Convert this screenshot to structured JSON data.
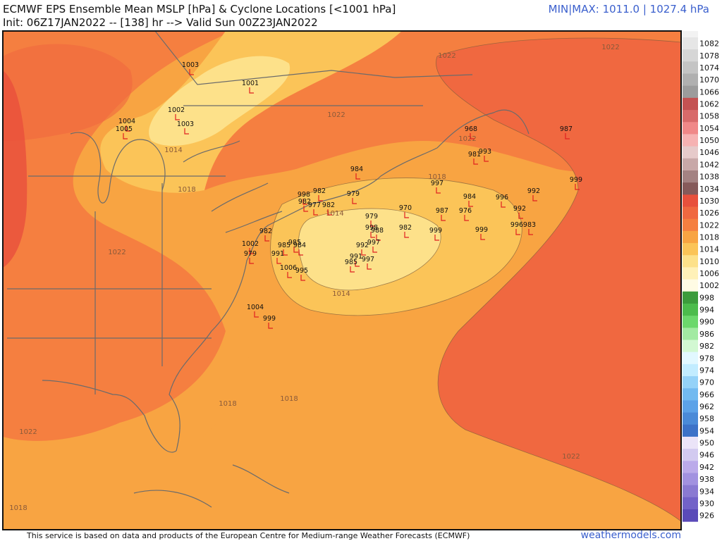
{
  "header": {
    "title": "ECMWF EPS Ensemble Mean MSLP [hPa] & Cyclone Locations [<1001 hPa]",
    "init": "Init: 06Z17JAN2022 -- [138] hr --> Valid Sun 00Z23JAN2022",
    "minmax": "MIN|MAX: 1011.0 | 1027.4 hPa"
  },
  "colorbar": {
    "levels": [
      1082,
      1078,
      1074,
      1070,
      1066,
      1062,
      1058,
      1054,
      1050,
      1046,
      1042,
      1038,
      1034,
      1030,
      1026,
      1022,
      1018,
      1014,
      1010,
      1006,
      1002,
      998,
      994,
      990,
      986,
      982,
      978,
      974,
      970,
      966,
      962,
      958,
      954,
      950,
      946,
      942,
      938,
      934,
      930,
      926
    ],
    "colors": [
      "#e6e6e6",
      "#d6d6d6",
      "#c4c4c4",
      "#b0b0b0",
      "#9c9c9c",
      "#c45252",
      "#d86a6a",
      "#f08888",
      "#f6b2b2",
      "#e6caca",
      "#c8a8a8",
      "#a48282",
      "#865a5a",
      "#e8503c",
      "#f06840",
      "#f57f40",
      "#f8a442",
      "#fbc458",
      "#fde18a",
      "#fff1b8",
      "#fffbe4",
      "#3c9c3c",
      "#4cbc4c",
      "#6cd86c",
      "#a2eaa2",
      "#d2f8d2",
      "#e2f8ff",
      "#c2ecff",
      "#94d2f8",
      "#72baf0",
      "#5ca2e8",
      "#4a8ad8",
      "#3c72c8",
      "#ebe4f8",
      "#d2caf0",
      "#bbaaea",
      "#a292e0",
      "#8a7ad2",
      "#7262c8",
      "#5a4ab8"
    ]
  },
  "contour_labels": [
    1022,
    1022,
    1022,
    1022,
    1014,
    1018,
    1018,
    1014,
    1022,
    1014,
    1018,
    1018,
    1022,
    1022,
    1018
  ],
  "cyclones": [
    1003,
    1001,
    1002,
    1003,
    1004,
    1005,
    968,
    987,
    981,
    993,
    984,
    999,
    997,
    992,
    979,
    984,
    996,
    998,
    982,
    982,
    977,
    982,
    970,
    987,
    976,
    992,
    979,
    998,
    988,
    982,
    999,
    999,
    996,
    983,
    992,
    997,
    985,
    985,
    984,
    991,
    991,
    997,
    985,
    1006,
    995,
    1004,
    999,
    1002,
    979,
    982
  ],
  "footer": {
    "credit": "This service is based on data and products of the European Centre for Medium-range Weather Forecasts (ECMWF)",
    "site": "weathermodels.com"
  }
}
